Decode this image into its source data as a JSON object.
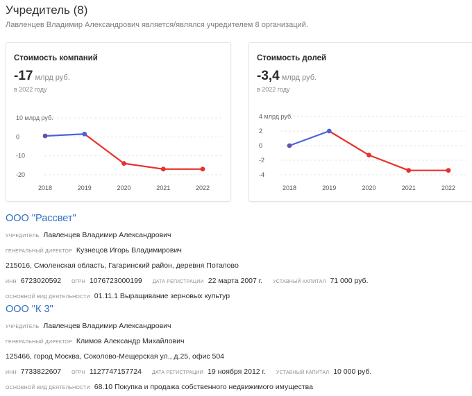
{
  "header": {
    "title": "Учредитель (8)",
    "subtitle": "Лавленцев Владимир Александрович является/являлся учредителем 8 организаций."
  },
  "cards": [
    {
      "title": "Стоимость компаний",
      "value": "-17",
      "unit": "млрд руб.",
      "year_note": "в 2022 году"
    },
    {
      "title": "Стоимость долей",
      "value": "-3,4",
      "unit": "млрд руб.",
      "year_note": "в 2022 году"
    }
  ],
  "chart_data": [
    {
      "type": "line",
      "title": "Стоимость компаний",
      "ylabel": "млрд руб.",
      "x": [
        "2018",
        "2019",
        "2020",
        "2021",
        "2022"
      ],
      "y_ticks": [
        "10 млрд руб.",
        "0",
        "-10",
        "-20"
      ],
      "y_tick_values": [
        10,
        0,
        -10,
        -20
      ],
      "ylim": [
        -20,
        10
      ],
      "series": [
        {
          "values": [
            0.5,
            1.5,
            -14,
            -17,
            -17
          ]
        }
      ],
      "colors": {
        "rising": "#4a63d8",
        "falling": "#e8312b",
        "point_start": "#6a4fa8",
        "grid": "#e6e6e6"
      },
      "grid": true
    },
    {
      "type": "line",
      "title": "Стоимость долей",
      "ylabel": "млрд руб.",
      "x": [
        "2018",
        "2019",
        "2020",
        "2021",
        "2022"
      ],
      "y_ticks": [
        "4 млрд руб.",
        "2",
        "0",
        "-2",
        "-4"
      ],
      "y_tick_values": [
        4,
        2,
        0,
        -2,
        -4
      ],
      "ylim": [
        -4,
        4
      ],
      "series": [
        {
          "values": [
            0,
            2,
            -1.3,
            -3.4,
            -3.4
          ]
        }
      ],
      "colors": {
        "rising": "#4a63d8",
        "falling": "#e8312b",
        "point_start": "#6a4fa8",
        "grid": "#e6e6e6"
      },
      "grid": true
    }
  ],
  "orgs": [
    {
      "name": "ООО \"Рассвет\"",
      "founder_label": "учредитель",
      "founder": "Лавленцев Владимир Александрович",
      "director_label": "генеральный директор",
      "director": "Кузнецов Игорь Владимирович",
      "address": "215016, Смоленская область, Гагаринский район, деревня Потапово",
      "inn_label": "инн",
      "inn": "6723020592",
      "ogrn_label": "огрн",
      "ogrn": "1076723000199",
      "reg_label": "дата регистрации",
      "reg_date": "22 марта 2007 г.",
      "capital_label": "уставный капитал",
      "capital": "71 000 руб.",
      "activity_label": "основной вид деятельности",
      "activity": "01.11.1 Выращивание зерновых культур"
    },
    {
      "name": "ООО \"К 3\"",
      "founder_label": "учредитель",
      "founder": "Лавленцев Владимир Александрович",
      "director_label": "генеральный директор",
      "director": "Климов Александр Михайлович",
      "address": "125466, город Москва, Соколово-Мещерская ул., д.25, офис 504",
      "inn_label": "инн",
      "inn": "7733822607",
      "ogrn_label": "огрн",
      "ogrn": "1127747157724",
      "reg_label": "дата регистрации",
      "reg_date": "19 ноября 2012 г.",
      "capital_label": "уставный капитал",
      "capital": "10 000 руб.",
      "activity_label": "основной вид деятельности",
      "activity": "68.10 Покупка и продажа собственного недвижимого имущества"
    }
  ]
}
